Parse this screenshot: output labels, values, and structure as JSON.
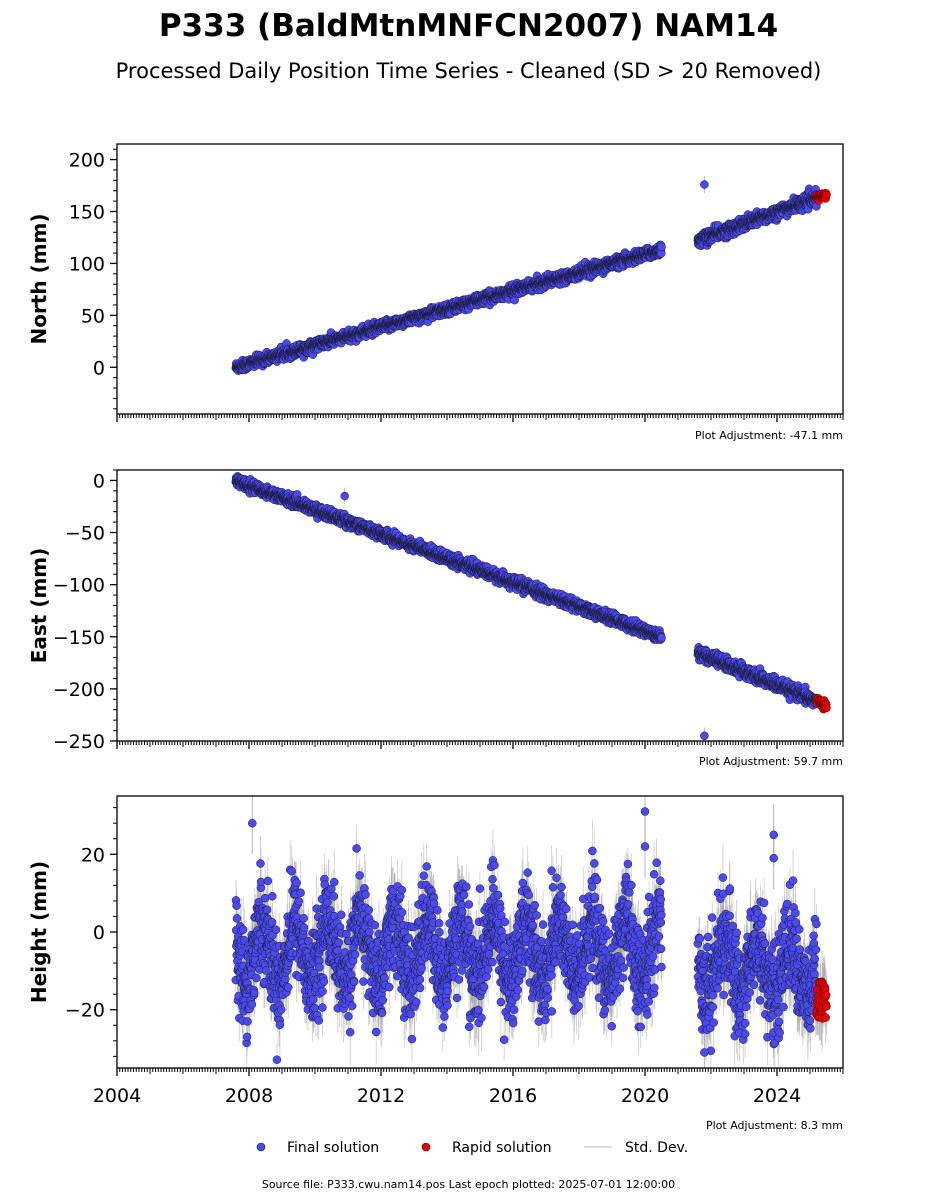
{
  "title": "P333 (BaldMtnMNFCN2007) NAM14",
  "subtitle": "Processed Daily Position Time Series - Cleaned (SD > 20 Removed)",
  "footer": "Source file: P333.cwu.nam14.pos  Last epoch plotted: 2025-07-01 12:00:00",
  "colors": {
    "final": "#4a4aee",
    "final_edge": "#1a1a3a",
    "rapid": "#e00000",
    "stddev": "#9a9a9a"
  },
  "legend": {
    "final": "Final solution",
    "rapid": "Rapid solution",
    "stddev": "Std. Dev."
  },
  "chart_data": [
    {
      "type": "scatter",
      "panel": "north",
      "ylabel": "North (mm)",
      "adjustment": "Plot Adjustment: -47.1 mm",
      "xlim": [
        2004,
        2026
      ],
      "ylim": [
        -45,
        215
      ],
      "yticks": [
        0,
        50,
        100,
        150,
        200
      ],
      "yticklabels": [
        "0",
        "50",
        "100",
        "150",
        "200"
      ],
      "series": [
        {
          "name": "Final solution",
          "segments": [
            {
              "t": [
                2007.6,
                2020.5
              ],
              "y": [
                0,
                113
              ],
              "scatter": 2.5
            },
            {
              "t": [
                2021.6,
                2025.2
              ],
              "y": [
                122,
                163
              ],
              "scatter": 3
            }
          ]
        },
        {
          "name": "Rapid solution",
          "segments": [
            {
              "t": [
                2025.2,
                2025.5
              ],
              "y": [
                163,
                166
              ],
              "scatter": 1.5
            }
          ]
        }
      ],
      "outliers": [
        {
          "t": 2021.8,
          "y": 176
        }
      ]
    },
    {
      "type": "scatter",
      "panel": "east",
      "ylabel": "East (mm)",
      "adjustment": "Plot Adjustment: 59.7 mm",
      "xlim": [
        2004,
        2026
      ],
      "ylim": [
        -250,
        10
      ],
      "yticks": [
        0,
        -50,
        -100,
        -150,
        -200,
        -250
      ],
      "yticklabels": [
        "0",
        "−50",
        "−100",
        "−150",
        "−200",
        "−250"
      ],
      "series": [
        {
          "name": "Final solution",
          "segments": [
            {
              "t": [
                2007.6,
                2020.5
              ],
              "y": [
                0,
                -150
              ],
              "scatter": 2.5
            },
            {
              "t": [
                2021.6,
                2025.2
              ],
              "y": [
                -165,
                -212
              ],
              "scatter": 3
            }
          ]
        },
        {
          "name": "Rapid solution",
          "segments": [
            {
              "t": [
                2025.2,
                2025.5
              ],
              "y": [
                -211,
                -216
              ],
              "scatter": 1.5
            }
          ]
        }
      ],
      "outliers": [
        {
          "t": 2010.9,
          "y": -15
        },
        {
          "t": 2021.8,
          "y": -245
        }
      ]
    },
    {
      "type": "scatter",
      "panel": "height",
      "ylabel": "Height (mm)",
      "adjustment": "Plot Adjustment: 8.3 mm",
      "xlim": [
        2004,
        2026
      ],
      "ylim": [
        -35,
        35
      ],
      "yticks": [
        20,
        0,
        -20
      ],
      "yticklabels": [
        "20",
        "0",
        "−20"
      ],
      "xticks": [
        2004,
        2008,
        2012,
        2016,
        2020,
        2024
      ],
      "xticklabels": [
        "2004",
        "2008",
        "2012",
        "2016",
        "2020",
        "2024"
      ],
      "series": [
        {
          "name": "Final solution",
          "segments": [
            {
              "t": [
                2007.6,
                2020.5
              ],
              "y": [
                -5,
                -5
              ],
              "scatter": 6,
              "seasonal": 8
            },
            {
              "t": [
                2021.6,
                2025.2
              ],
              "y": [
                -8,
                -10
              ],
              "scatter": 6,
              "seasonal": 7
            }
          ]
        },
        {
          "name": "Rapid solution",
          "segments": [
            {
              "t": [
                2025.2,
                2025.5
              ],
              "y": [
                -18,
                -18
              ],
              "scatter": 3,
              "seasonal": 0
            }
          ]
        }
      ],
      "outliers": [
        {
          "t": 2008.1,
          "y": 28
        },
        {
          "t": 2020.0,
          "y": 31
        },
        {
          "t": 2020.0,
          "y": 22
        },
        {
          "t": 2023.9,
          "y": 25
        },
        {
          "t": 2023.9,
          "y": 19
        },
        {
          "t": 2021.8,
          "y": -31
        }
      ]
    }
  ]
}
